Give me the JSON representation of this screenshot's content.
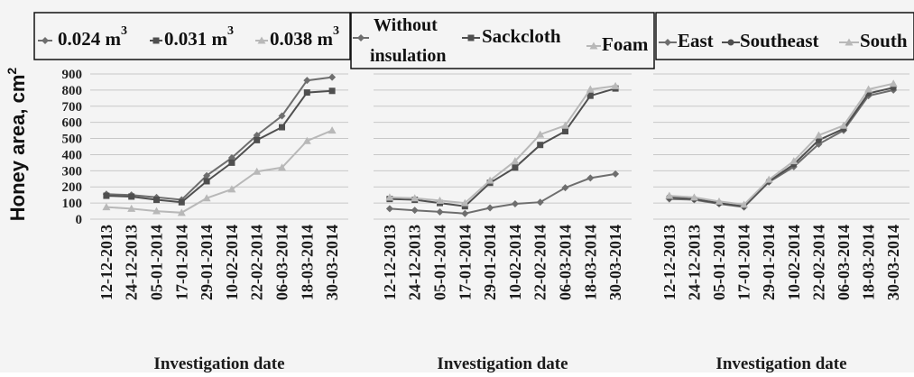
{
  "figure": {
    "ylabel": "Honey area, cm",
    "ylabel_sup": "2"
  },
  "chart_data": [
    {
      "type": "line",
      "title": "",
      "xlabel": "Investigation date",
      "ylabel": "Honey area, cm2",
      "ylim": [
        0,
        900
      ],
      "yticks": [
        "0",
        "100",
        "200",
        "300",
        "400",
        "500",
        "600",
        "700",
        "800",
        "900"
      ],
      "grid": true,
      "legend_position": "top",
      "categories": [
        "12-12-2013",
        "24-12-2013",
        "05-01-2014",
        "17-01-2014",
        "29-01-2014",
        "10-02-2014",
        "22-02-2014",
        "06-03-2014",
        "18-03-2014",
        "30-03-2014"
      ],
      "series": [
        {
          "name": "0.024 m",
          "name_sup": "3",
          "color": "#6e6e6e",
          "marker": "diamond",
          "values": [
            155,
            150,
            135,
            120,
            270,
            380,
            520,
            640,
            860,
            880
          ]
        },
        {
          "name": "0.031 m",
          "name_sup": "3",
          "color": "#4f4f4f",
          "marker": "square",
          "values": [
            145,
            140,
            120,
            105,
            235,
            350,
            490,
            570,
            785,
            795
          ]
        },
        {
          "name": "0.038 m",
          "name_sup": "3",
          "color": "#b8b8b8",
          "marker": "triangle",
          "values": [
            75,
            65,
            50,
            40,
            130,
            185,
            295,
            320,
            485,
            550
          ]
        }
      ]
    },
    {
      "type": "line",
      "title": "",
      "xlabel": "Investigation date",
      "ylim": [
        0,
        900
      ],
      "grid": true,
      "legend_position": "top",
      "categories": [
        "12-12-2013",
        "24-12-2013",
        "05-01-2014",
        "17-01-2014",
        "29-01-2014",
        "10-02-2014",
        "22-02-2014",
        "06-03-2014",
        "18-03-2014",
        "30-03-2014"
      ],
      "series": [
        {
          "name": "Without insulation",
          "name_lines": [
            "Without",
            "insulation"
          ],
          "color": "#6e6e6e",
          "marker": "diamond",
          "values": [
            65,
            55,
            45,
            35,
            70,
            95,
            105,
            195,
            255,
            280
          ]
        },
        {
          "name": "Sackcloth",
          "color": "#4f4f4f",
          "marker": "square",
          "values": [
            125,
            120,
            100,
            80,
            225,
            320,
            460,
            545,
            765,
            810
          ]
        },
        {
          "name": "Foam",
          "color": "#b8b8b8",
          "marker": "triangle",
          "values": [
            135,
            130,
            115,
            100,
            240,
            360,
            525,
            580,
            805,
            825
          ]
        }
      ]
    },
    {
      "type": "line",
      "title": "",
      "xlabel": "Investigation date",
      "ylim": [
        0,
        900
      ],
      "grid": true,
      "legend_position": "top",
      "categories": [
        "12-12-2013",
        "24-12-2013",
        "05-01-2014",
        "17-01-2014",
        "29-01-2014",
        "10-02-2014",
        "22-02-2014",
        "06-03-2014",
        "18-03-2014",
        "30-03-2014"
      ],
      "series": [
        {
          "name": "East",
          "color": "#6e6e6e",
          "marker": "diamond",
          "values": [
            125,
            120,
            95,
            75,
            230,
            325,
            465,
            550,
            765,
            800
          ]
        },
        {
          "name": "Southeast",
          "color": "#4f4f4f",
          "marker": "circle",
          "values": [
            135,
            125,
            100,
            80,
            235,
            340,
            490,
            560,
            780,
            815
          ]
        },
        {
          "name": "South",
          "color": "#b8b8b8",
          "marker": "triangle",
          "values": [
            145,
            135,
            110,
            90,
            245,
            360,
            520,
            580,
            805,
            840
          ]
        }
      ]
    }
  ]
}
